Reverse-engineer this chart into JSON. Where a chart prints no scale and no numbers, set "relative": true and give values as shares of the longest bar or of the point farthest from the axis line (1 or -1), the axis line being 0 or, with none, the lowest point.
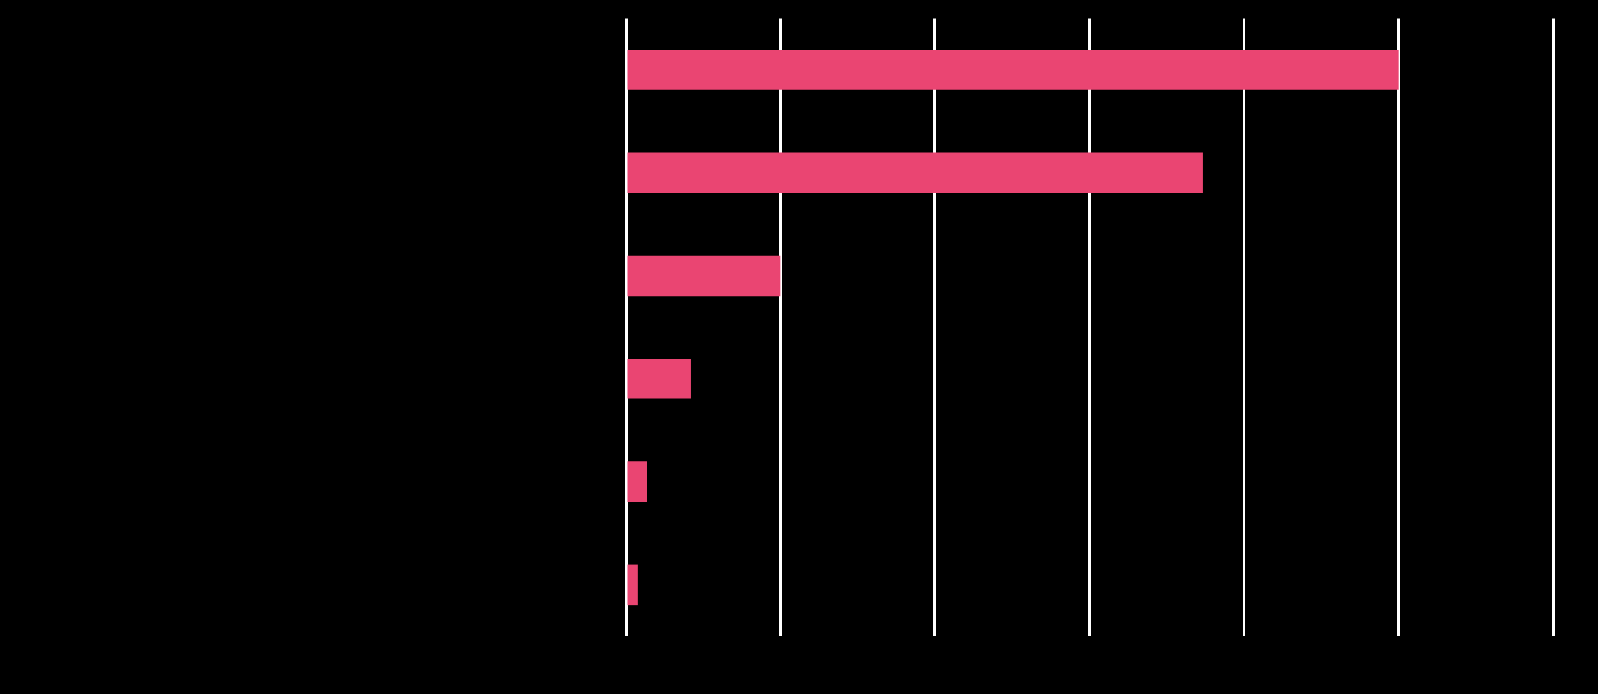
{
  "chart_data": {
    "type": "bar",
    "orientation": "horizontal",
    "relative": true,
    "grid": "x",
    "legend": false,
    "categories": [
      null,
      null,
      null,
      null,
      null,
      null
    ],
    "series": [
      {
        "color": "#ea4572",
        "values": [
          1,
          0.747,
          0.2,
          0.084,
          0.027,
          0.015
        ]
      }
    ]
  }
}
